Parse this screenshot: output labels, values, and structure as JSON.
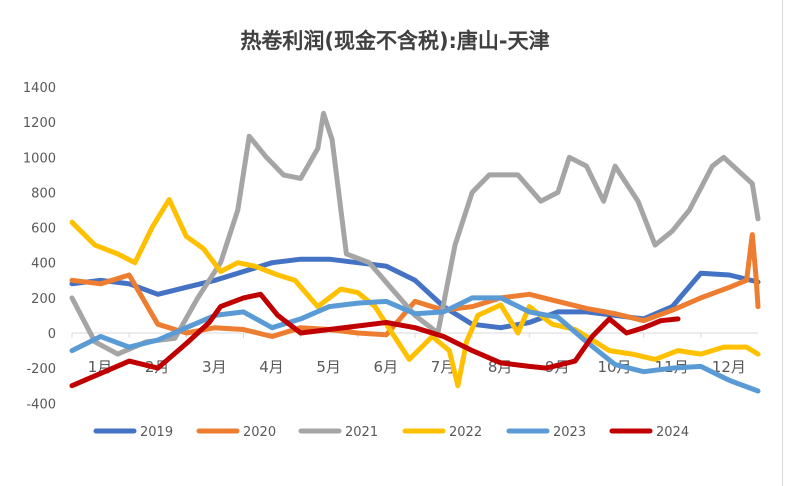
{
  "chart_data": {
    "type": "line",
    "title": "热卷利润(现金不含税):唐山-天津",
    "xlabel": "",
    "ylabel": "",
    "ylim": [
      -400,
      1400
    ],
    "yticks": [
      1400,
      1200,
      1000,
      800,
      600,
      400,
      200,
      0,
      -200,
      -400
    ],
    "xlim": [
      1,
      13
    ],
    "xticks": [
      "1月",
      "2月",
      "3月",
      "4月",
      "5月",
      "6月",
      "7月",
      "8月",
      "9月",
      "10月",
      "11月",
      "12月"
    ],
    "grid": false,
    "legend": "bottom",
    "series": [
      {
        "name": "2019",
        "color": "#4472c4",
        "points": [
          [
            1,
            280
          ],
          [
            1.5,
            300
          ],
          [
            2,
            280
          ],
          [
            2.5,
            220
          ],
          [
            3,
            260
          ],
          [
            3.5,
            300
          ],
          [
            4,
            350
          ],
          [
            4.5,
            400
          ],
          [
            5,
            420
          ],
          [
            5.5,
            420
          ],
          [
            6,
            400
          ],
          [
            6.5,
            380
          ],
          [
            7,
            300
          ],
          [
            7.5,
            150
          ],
          [
            8,
            50
          ],
          [
            8.5,
            30
          ],
          [
            9,
            60
          ],
          [
            9.5,
            120
          ],
          [
            10,
            120
          ],
          [
            10.5,
            100
          ],
          [
            11,
            80
          ],
          [
            11.5,
            150
          ],
          [
            12,
            340
          ],
          [
            12.5,
            330
          ],
          [
            13,
            290
          ]
        ]
      },
      {
        "name": "2020",
        "color": "#ed7d31",
        "points": [
          [
            1,
            300
          ],
          [
            1.5,
            280
          ],
          [
            2,
            330
          ],
          [
            2.5,
            50
          ],
          [
            3,
            0
          ],
          [
            3.5,
            30
          ],
          [
            4,
            20
          ],
          [
            4.5,
            -20
          ],
          [
            5,
            30
          ],
          [
            5.5,
            20
          ],
          [
            6,
            0
          ],
          [
            6.5,
            -10
          ],
          [
            7,
            180
          ],
          [
            7.5,
            130
          ],
          [
            8,
            150
          ],
          [
            8.5,
            200
          ],
          [
            9,
            220
          ],
          [
            9.5,
            180
          ],
          [
            10,
            140
          ],
          [
            10.5,
            110
          ],
          [
            11,
            70
          ],
          [
            11.5,
            130
          ],
          [
            12,
            200
          ],
          [
            12.5,
            260
          ],
          [
            12.8,
            300
          ],
          [
            12.9,
            560
          ],
          [
            12.97,
            300
          ],
          [
            13,
            150
          ]
        ]
      },
      {
        "name": "2021",
        "color": "#a5a5a5",
        "points": [
          [
            1,
            200
          ],
          [
            1.4,
            -50
          ],
          [
            1.8,
            -120
          ],
          [
            2.3,
            -50
          ],
          [
            2.8,
            -30
          ],
          [
            3.2,
            200
          ],
          [
            3.6,
            400
          ],
          [
            3.9,
            700
          ],
          [
            4.1,
            1120
          ],
          [
            4.4,
            1000
          ],
          [
            4.7,
            900
          ],
          [
            5,
            880
          ],
          [
            5.3,
            1050
          ],
          [
            5.4,
            1250
          ],
          [
            5.55,
            1100
          ],
          [
            5.8,
            450
          ],
          [
            6.2,
            400
          ],
          [
            6.6,
            250
          ],
          [
            7,
            100
          ],
          [
            7.4,
            0
          ],
          [
            7.7,
            500
          ],
          [
            8,
            800
          ],
          [
            8.3,
            900
          ],
          [
            8.8,
            900
          ],
          [
            9.2,
            750
          ],
          [
            9.5,
            800
          ],
          [
            9.7,
            1000
          ],
          [
            10,
            950
          ],
          [
            10.3,
            750
          ],
          [
            10.5,
            950
          ],
          [
            10.9,
            750
          ],
          [
            11.2,
            500
          ],
          [
            11.5,
            580
          ],
          [
            11.8,
            700
          ],
          [
            12.2,
            950
          ],
          [
            12.4,
            1000
          ],
          [
            12.9,
            850
          ],
          [
            13,
            650
          ]
        ]
      },
      {
        "name": "2022",
        "color": "#ffc000",
        "points": [
          [
            1,
            630
          ],
          [
            1.4,
            500
          ],
          [
            1.8,
            450
          ],
          [
            2.1,
            400
          ],
          [
            2.4,
            600
          ],
          [
            2.7,
            760
          ],
          [
            3,
            550
          ],
          [
            3.3,
            480
          ],
          [
            3.6,
            350
          ],
          [
            3.9,
            400
          ],
          [
            4.2,
            380
          ],
          [
            4.6,
            330
          ],
          [
            4.9,
            300
          ],
          [
            5.3,
            150
          ],
          [
            5.7,
            250
          ],
          [
            6,
            230
          ],
          [
            6.3,
            150
          ],
          [
            6.6,
            0
          ],
          [
            6.9,
            -150
          ],
          [
            7.3,
            -20
          ],
          [
            7.6,
            -100
          ],
          [
            7.75,
            -300
          ],
          [
            7.9,
            -50
          ],
          [
            8.1,
            100
          ],
          [
            8.5,
            160
          ],
          [
            8.8,
            0
          ],
          [
            9,
            150
          ],
          [
            9.4,
            50
          ],
          [
            9.8,
            20
          ],
          [
            10,
            -20
          ],
          [
            10.4,
            -100
          ],
          [
            10.8,
            -120
          ],
          [
            11.2,
            -150
          ],
          [
            11.6,
            -100
          ],
          [
            12,
            -120
          ],
          [
            12.4,
            -80
          ],
          [
            12.8,
            -80
          ],
          [
            13,
            -120
          ]
        ]
      },
      {
        "name": "2023",
        "color": "#5b9bd5",
        "points": [
          [
            1,
            -100
          ],
          [
            1.5,
            -20
          ],
          [
            2,
            -80
          ],
          [
            2.5,
            -40
          ],
          [
            3,
            30
          ],
          [
            3.5,
            100
          ],
          [
            4,
            120
          ],
          [
            4.5,
            30
          ],
          [
            5,
            80
          ],
          [
            5.5,
            150
          ],
          [
            6,
            170
          ],
          [
            6.5,
            180
          ],
          [
            7,
            110
          ],
          [
            7.5,
            120
          ],
          [
            8,
            200
          ],
          [
            8.5,
            200
          ],
          [
            9,
            120
          ],
          [
            9.5,
            90
          ],
          [
            10,
            -50
          ],
          [
            10.5,
            -180
          ],
          [
            11,
            -220
          ],
          [
            11.5,
            -200
          ],
          [
            12,
            -190
          ],
          [
            12.5,
            -270
          ],
          [
            13,
            -330
          ]
        ]
      },
      {
        "name": "2024",
        "color": "#c00000",
        "points": [
          [
            1,
            -300
          ],
          [
            1.5,
            -230
          ],
          [
            2,
            -160
          ],
          [
            2.5,
            -200
          ],
          [
            3,
            -60
          ],
          [
            3.4,
            60
          ],
          [
            3.6,
            150
          ],
          [
            4,
            200
          ],
          [
            4.3,
            220
          ],
          [
            4.6,
            100
          ],
          [
            5,
            0
          ],
          [
            5.5,
            20
          ],
          [
            6,
            40
          ],
          [
            6.5,
            60
          ],
          [
            7,
            30
          ],
          [
            7.5,
            -20
          ],
          [
            8,
            -100
          ],
          [
            8.5,
            -170
          ],
          [
            9,
            -190
          ],
          [
            9.3,
            -200
          ],
          [
            9.8,
            -160
          ],
          [
            10.1,
            -20
          ],
          [
            10.4,
            80
          ],
          [
            10.7,
            0
          ],
          [
            11,
            30
          ],
          [
            11.3,
            70
          ],
          [
            11.6,
            80
          ]
        ]
      }
    ]
  }
}
